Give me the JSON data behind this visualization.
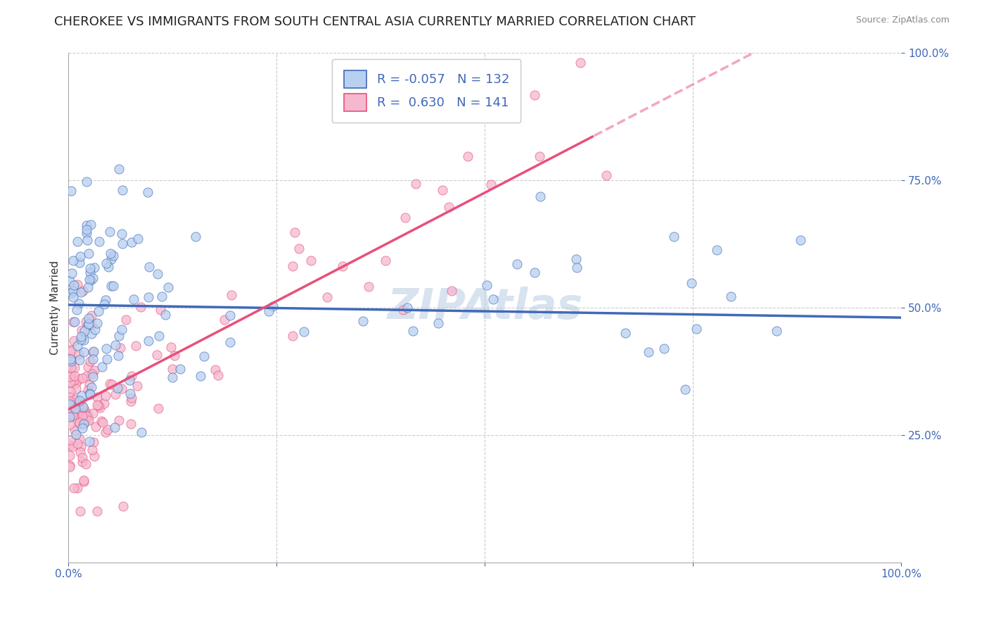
{
  "title": "CHEROKEE VS IMMIGRANTS FROM SOUTH CENTRAL ASIA CURRENTLY MARRIED CORRELATION CHART",
  "source": "Source: ZipAtlas.com",
  "ylabel": "Currently Married",
  "xlim": [
    0.0,
    1.0
  ],
  "ylim": [
    0.0,
    1.0
  ],
  "series": [
    {
      "name": "Cherokee",
      "R": -0.057,
      "N": 132,
      "color_scatter": "#b8d0f0",
      "color_line": "#4169b8",
      "intercept": 0.505,
      "slope": -0.025
    },
    {
      "name": "Immigrants from South Central Asia",
      "R": 0.63,
      "N": 141,
      "color_scatter": "#f5b8ce",
      "color_line": "#e8507a",
      "intercept": 0.3,
      "slope": 0.85
    }
  ],
  "background_color": "#ffffff",
  "grid_color": "#cccccc",
  "watermark": "ZIPAtlas",
  "title_fontsize": 13,
  "axis_label_fontsize": 11,
  "tick_fontsize": 11,
  "legend_fontsize": 13,
  "pink_solid_cutoff": 0.63,
  "pink_dashed_alpha": 0.5
}
